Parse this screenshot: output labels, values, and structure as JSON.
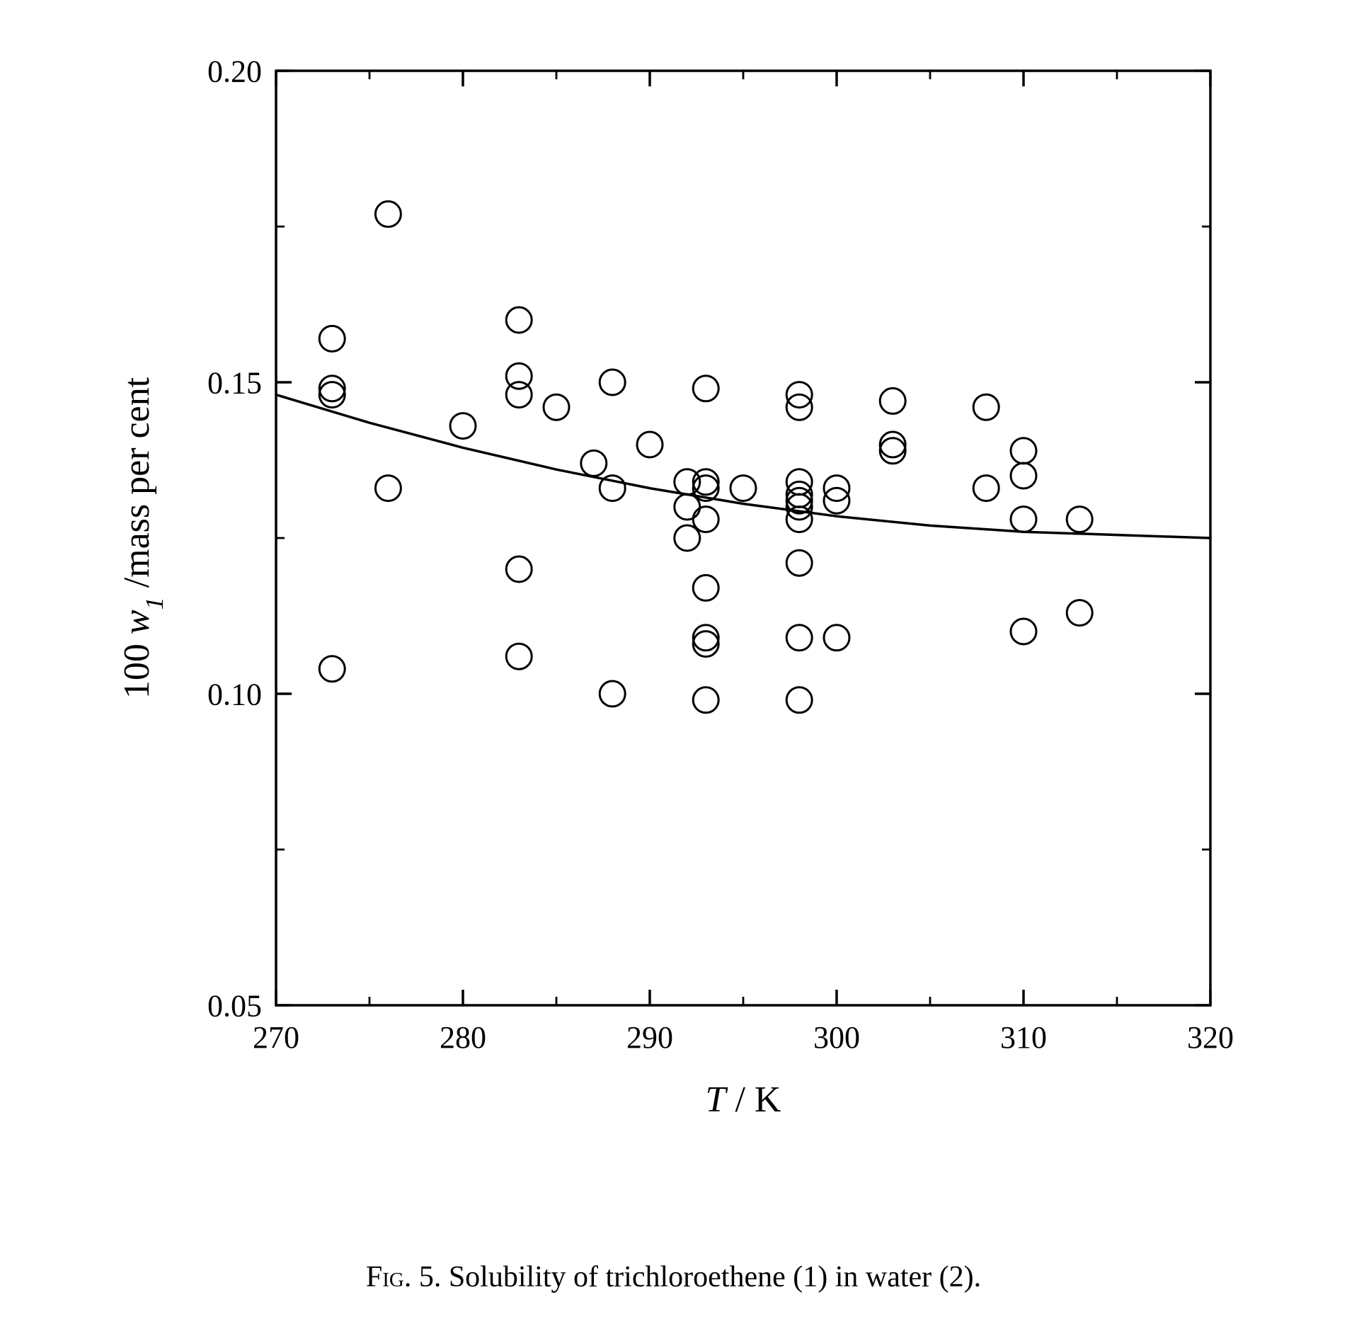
{
  "chart": {
    "type": "scatter",
    "xlabel": "T / K",
    "ylabel": "100 w₁ /mass per cent",
    "xlabel_parts": {
      "var": "T",
      "sep": " / ",
      "unit": "K"
    },
    "ylabel_parts": {
      "prefix": "100",
      "var": "w",
      "sub": "1",
      "sep": " /",
      "unit": "mass per cent"
    },
    "xlim": [
      270,
      320
    ],
    "ylim": [
      0.05,
      0.2
    ],
    "xticks": [
      270,
      280,
      290,
      300,
      310,
      320
    ],
    "yticks": [
      0.05,
      0.1,
      0.15,
      0.2
    ],
    "xtick_labels": [
      "270",
      "280",
      "290",
      "300",
      "310",
      "320"
    ],
    "ytick_labels": [
      "0.05",
      "0.10",
      "0.15",
      "0.20"
    ],
    "minor_ticks": true,
    "tick_fontsize": 44,
    "label_fontsize": 52,
    "background_color": "#ffffff",
    "axis_color": "#000000",
    "axis_linewidth": 3.5,
    "tick_length_major": 22,
    "tick_length_minor": 12,
    "marker": {
      "style": "circle-open",
      "radius": 18,
      "stroke": "#000000",
      "stroke_width": 3,
      "fill": "none"
    },
    "curve": {
      "stroke": "#000000",
      "stroke_width": 3.5,
      "points": [
        [
          270,
          0.148
        ],
        [
          275,
          0.1435
        ],
        [
          280,
          0.1395
        ],
        [
          285,
          0.136
        ],
        [
          290,
          0.133
        ],
        [
          295,
          0.1305
        ],
        [
          300,
          0.1285
        ],
        [
          305,
          0.127
        ],
        [
          310,
          0.126
        ],
        [
          315,
          0.1255
        ],
        [
          320,
          0.125
        ]
      ]
    },
    "data": [
      [
        273,
        0.104
      ],
      [
        273,
        0.148
      ],
      [
        273,
        0.149
      ],
      [
        273,
        0.157
      ],
      [
        276,
        0.133
      ],
      [
        276,
        0.177
      ],
      [
        280,
        0.143
      ],
      [
        283,
        0.106
      ],
      [
        283,
        0.12
      ],
      [
        283,
        0.148
      ],
      [
        283,
        0.151
      ],
      [
        283,
        0.16
      ],
      [
        285,
        0.146
      ],
      [
        287,
        0.137
      ],
      [
        288,
        0.1
      ],
      [
        288,
        0.133
      ],
      [
        288,
        0.15
      ],
      [
        290,
        0.14
      ],
      [
        292,
        0.125
      ],
      [
        292,
        0.13
      ],
      [
        292,
        0.134
      ],
      [
        293,
        0.099
      ],
      [
        293,
        0.108
      ],
      [
        293,
        0.109
      ],
      [
        293,
        0.117
      ],
      [
        293,
        0.128
      ],
      [
        293,
        0.133
      ],
      [
        293,
        0.134
      ],
      [
        293,
        0.149
      ],
      [
        295,
        0.133
      ],
      [
        298,
        0.099
      ],
      [
        298,
        0.109
      ],
      [
        298,
        0.121
      ],
      [
        298,
        0.128
      ],
      [
        298,
        0.13
      ],
      [
        298,
        0.131
      ],
      [
        298,
        0.132
      ],
      [
        298,
        0.134
      ],
      [
        298,
        0.146
      ],
      [
        298,
        0.148
      ],
      [
        300,
        0.109
      ],
      [
        300,
        0.131
      ],
      [
        300,
        0.133
      ],
      [
        303,
        0.139
      ],
      [
        303,
        0.14
      ],
      [
        303,
        0.147
      ],
      [
        308,
        0.133
      ],
      [
        308,
        0.146
      ],
      [
        310,
        0.11
      ],
      [
        310,
        0.128
      ],
      [
        310,
        0.135
      ],
      [
        310,
        0.139
      ],
      [
        313,
        0.113
      ],
      [
        313,
        0.128
      ]
    ]
  },
  "caption": {
    "label": "Fig. 5.",
    "text": "Solubility of trichloroethene (1) in water (2).",
    "fontsize": 42,
    "color": "#000000"
  }
}
